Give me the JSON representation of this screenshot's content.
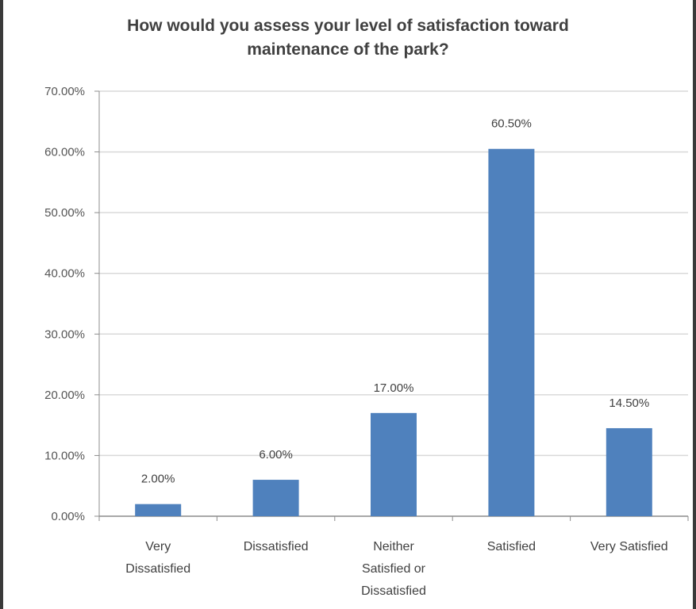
{
  "chart_data": {
    "type": "bar",
    "title_lines": [
      "How would you assess your level of satisfaction toward",
      "maintenance of the park?"
    ],
    "categories": [
      [
        "Very",
        "Dissatisfied"
      ],
      [
        "Dissatisfied"
      ],
      [
        "Neither",
        "Satisfied or",
        "Dissatisfied"
      ],
      [
        "Satisfied"
      ],
      [
        "Very Satisfied"
      ]
    ],
    "values": [
      2.0,
      6.0,
      17.0,
      60.5,
      14.5
    ],
    "data_labels": [
      "2.00%",
      "6.00%",
      "17.00%",
      "60.50%",
      "14.50%"
    ],
    "y_ticks": [
      "0.00%",
      "10.00%",
      "20.00%",
      "30.00%",
      "40.00%",
      "50.00%",
      "60.00%",
      "70.00%"
    ],
    "ylim": [
      0,
      70
    ],
    "grid": true,
    "bar_color": "#4f81bd"
  }
}
